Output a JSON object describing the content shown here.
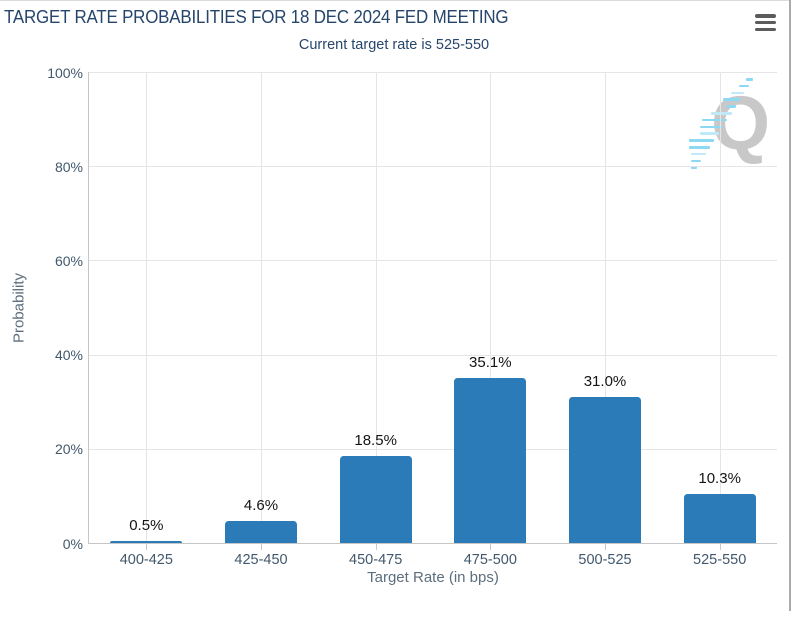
{
  "header": {
    "title": "TARGET RATE PROBABILITIES FOR 18 DEC 2024 FED MEETING",
    "subtitle": "Current target rate is 525-550",
    "menu_icon": "hamburger-menu-icon"
  },
  "watermark": {
    "icon": "quikstrike-q-logo",
    "letter": "Q"
  },
  "chart_data": {
    "type": "bar",
    "title": "TARGET RATE PROBABILITIES FOR 18 DEC 2024 FED MEETING",
    "subtitle": "Current target rate is 525-550",
    "categories": [
      "400-425",
      "425-450",
      "450-475",
      "475-500",
      "500-525",
      "525-550"
    ],
    "values": [
      0.5,
      4.6,
      18.5,
      35.1,
      31.0,
      10.3
    ],
    "value_labels": [
      "0.5%",
      "4.6%",
      "18.5%",
      "35.1%",
      "31.0%",
      "10.3%"
    ],
    "xlabel": "Target Rate (in bps)",
    "ylabel": "Probability",
    "yticks": [
      "0%",
      "20%",
      "40%",
      "60%",
      "80%",
      "100%"
    ],
    "ytick_values": [
      0,
      20,
      40,
      60,
      80,
      100
    ],
    "ylim": [
      0,
      100
    ],
    "grid": true,
    "legend": "none"
  },
  "colors": {
    "bar": "#2b7bb9",
    "title_text": "#26456b",
    "tick_label": "#42586d",
    "axis_title": "#5d6e7e",
    "value_label": "#141414",
    "gridline": "#e5e5e5",
    "axis_line": "#c6c6c6",
    "watermark_q": "#c8c8c8",
    "watermark_dash": "#8ed9f2"
  }
}
